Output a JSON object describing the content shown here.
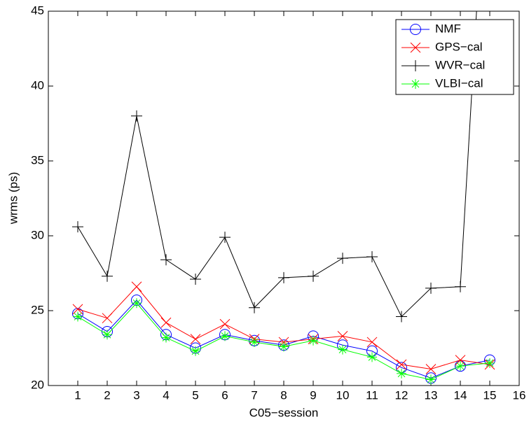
{
  "chart_data": {
    "type": "line",
    "x_label": "C05−session",
    "y_label": "wrms (ps)",
    "x": [
      1,
      2,
      3,
      4,
      5,
      6,
      7,
      8,
      9,
      10,
      11,
      12,
      13,
      14,
      15
    ],
    "xlim": [
      0,
      16
    ],
    "xticks": [
      1,
      2,
      3,
      4,
      5,
      6,
      7,
      8,
      9,
      10,
      11,
      12,
      13,
      14,
      15,
      16
    ],
    "ylim": [
      20,
      45
    ],
    "yticks": [
      20,
      25,
      30,
      35,
      40,
      45
    ],
    "legend": "upper right",
    "series": [
      {
        "name": "NMF",
        "color": "#0000ff",
        "marker": "circle",
        "values": [
          24.8,
          23.6,
          25.7,
          23.4,
          22.5,
          23.4,
          23.0,
          22.7,
          23.3,
          22.7,
          22.3,
          21.2,
          20.5,
          21.3,
          21.7
        ]
      },
      {
        "name": "GPS−cal",
        "color": "#ff0000",
        "marker": "x",
        "values": [
          25.1,
          24.5,
          26.6,
          24.2,
          23.1,
          24.1,
          23.1,
          22.9,
          23.1,
          23.3,
          22.9,
          21.4,
          21.1,
          21.7,
          21.4
        ]
      },
      {
        "name": "WVR−cal",
        "color": "#000000",
        "marker": "plus",
        "values": [
          30.6,
          27.3,
          38.0,
          28.4,
          27.1,
          29.9,
          25.2,
          27.2,
          27.3,
          28.5,
          28.6,
          24.6,
          26.5,
          26.6,
          60
        ]
      },
      {
        "name": "VLBI−cal",
        "color": "#00ff00",
        "marker": "star",
        "values": [
          24.6,
          23.4,
          25.5,
          23.2,
          22.3,
          23.3,
          22.9,
          22.6,
          23.0,
          22.4,
          21.9,
          20.8,
          20.4,
          21.3,
          21.5
        ]
      }
    ]
  }
}
